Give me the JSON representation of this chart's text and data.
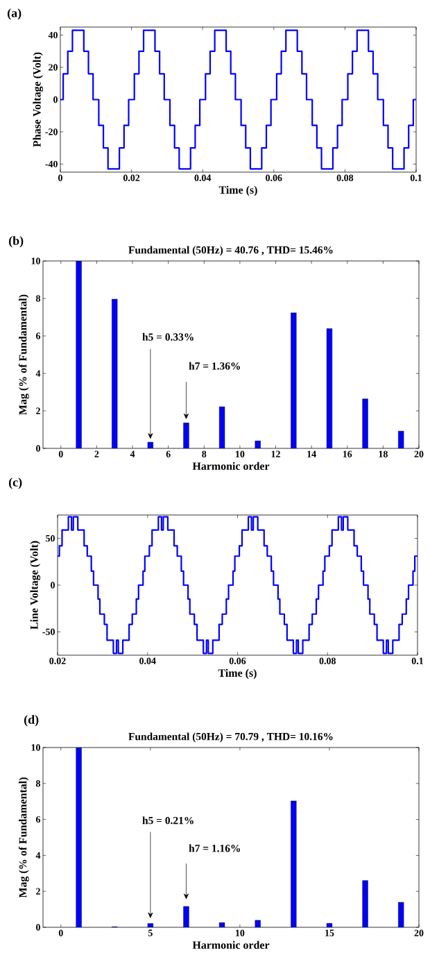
{
  "chart_data": [
    {
      "type": "step",
      "xlabel": "Time (s)",
      "ylabel": "Phase Voltage (Volt)",
      "color": "#0000ff",
      "annotations": [
        "(a)"
      ],
      "x": [
        0,
        0.0008,
        0.0021,
        0.0034,
        0.0066,
        0.0079,
        0.0092,
        0.0108,
        0.0121,
        0.0134,
        0.0166,
        0.0179,
        0.0192,
        0.0208,
        0.0221,
        0.0234,
        0.0266,
        0.0279,
        0.0292,
        0.0308,
        0.0321,
        0.0334,
        0.0366,
        0.0379,
        0.0392,
        0.0408,
        0.0421,
        0.0434,
        0.0466,
        0.0479,
        0.0492,
        0.0508,
        0.0521,
        0.0534,
        0.0566,
        0.0579,
        0.0592,
        0.0608,
        0.0621,
        0.0634,
        0.0666,
        0.0679,
        0.0692,
        0.0708,
        0.0721,
        0.0734,
        0.0766,
        0.0779,
        0.0792,
        0.0808,
        0.0821,
        0.0834,
        0.0866,
        0.0879,
        0.0892,
        0.0908,
        0.0921,
        0.0934,
        0.0966,
        0.0979,
        0.0992,
        0.1
      ],
      "values": [
        0,
        16,
        30,
        43,
        30,
        16,
        0,
        -16,
        -30,
        -43,
        -30,
        -16,
        0,
        16,
        30,
        43,
        30,
        16,
        0,
        -16,
        -30,
        -43,
        -30,
        -16,
        0,
        16,
        30,
        43,
        30,
        16,
        0,
        -16,
        -30,
        -43,
        -30,
        -16,
        0,
        16,
        30,
        43,
        30,
        16,
        0,
        -16,
        -30,
        -43,
        -30,
        -16,
        0,
        16,
        30,
        43,
        30,
        16,
        0,
        -16,
        -30,
        -43,
        -30,
        -16,
        0,
        0
      ],
      "xlim": [
        0,
        0.1
      ],
      "xticks": [
        0,
        0.02,
        0.04,
        0.06,
        0.08,
        0.1
      ],
      "ylim": [
        -45,
        45
      ],
      "yticks": [
        -40,
        -20,
        0,
        20,
        40
      ]
    },
    {
      "type": "bar",
      "title": "Fundamental (50Hz) = 40.76 , THD= 15.46%",
      "xlabel": "Harmonic order",
      "ylabel": "Mag (% of Fundamental)",
      "color": "#0000ff",
      "annotations": [
        "(b)",
        "h5 = 0.33%",
        "h7 = 1.36%"
      ],
      "x": [
        1,
        3,
        5,
        7,
        9,
        11,
        13,
        15,
        17,
        19
      ],
      "values": [
        10,
        7.96,
        0.33,
        1.36,
        2.22,
        0.4,
        7.23,
        6.39,
        2.64,
        0.92
      ],
      "xlim": [
        -1,
        20
      ],
      "xticks": [
        0,
        2,
        4,
        6,
        8,
        10,
        12,
        14,
        16,
        18,
        20
      ],
      "ylim": [
        0,
        10
      ],
      "yticks": [
        0,
        2,
        4,
        6,
        8,
        10
      ]
    },
    {
      "type": "step",
      "xlabel": "Time (s)",
      "ylabel": "Line Voltage (Volt)",
      "color": "#0000ff",
      "annotations": [
        "(c)"
      ],
      "x": [
        0.02,
        0.0204,
        0.021,
        0.0224,
        0.0231,
        0.0235,
        0.0245,
        0.0259,
        0.0266,
        0.0275,
        0.028,
        0.029,
        0.0294,
        0.0304,
        0.031,
        0.0324,
        0.0331,
        0.0335,
        0.0345,
        0.0359,
        0.0366,
        0.0375,
        0.038,
        0.039,
        0.0394,
        0.0404,
        0.041,
        0.0424,
        0.0431,
        0.0435,
        0.0445,
        0.0459,
        0.0466,
        0.0475,
        0.048,
        0.049,
        0.0494,
        0.0504,
        0.051,
        0.0524,
        0.0531,
        0.0535,
        0.0545,
        0.0559,
        0.0566,
        0.0575,
        0.058,
        0.059,
        0.0594,
        0.0604,
        0.061,
        0.0624,
        0.0631,
        0.0635,
        0.0645,
        0.0659,
        0.0666,
        0.0675,
        0.068,
        0.069,
        0.0694,
        0.0704,
        0.071,
        0.0724,
        0.0731,
        0.0735,
        0.0745,
        0.0759,
        0.0766,
        0.0775,
        0.078,
        0.079,
        0.0794,
        0.0804,
        0.081,
        0.0824,
        0.0831,
        0.0835,
        0.0845,
        0.0859,
        0.0866,
        0.0875,
        0.088,
        0.089,
        0.0894,
        0.0904,
        0.091,
        0.0924,
        0.0931,
        0.0935,
        0.0945,
        0.0959,
        0.0966,
        0.0975,
        0.098,
        0.099,
        0.0994,
        0.1
      ],
      "values": [
        31,
        42,
        59,
        73,
        59,
        73,
        59,
        42,
        31,
        15,
        0,
        -15,
        -31,
        -42,
        -59,
        -73,
        -59,
        -73,
        -59,
        -42,
        -31,
        -15,
        0,
        15,
        31,
        42,
        59,
        73,
        59,
        73,
        59,
        42,
        31,
        15,
        0,
        -15,
        -31,
        -42,
        -59,
        -73,
        -59,
        -73,
        -59,
        -42,
        -31,
        -15,
        0,
        15,
        31,
        42,
        59,
        73,
        59,
        73,
        59,
        42,
        31,
        15,
        0,
        -15,
        -31,
        -42,
        -59,
        -73,
        -59,
        -73,
        -59,
        -42,
        -31,
        -15,
        0,
        15,
        31,
        42,
        59,
        73,
        59,
        73,
        59,
        42,
        31,
        15,
        0,
        -15,
        -31,
        -42,
        -59,
        -73,
        -59,
        -73,
        -59,
        -42,
        -31,
        -15,
        0,
        15,
        31,
        31
      ],
      "xlim": [
        0.02,
        0.1
      ],
      "xticks": [
        0.02,
        0.04,
        0.06,
        0.08,
        0.1
      ],
      "ylim": [
        -75,
        75
      ],
      "yticks": [
        -50,
        0,
        50
      ]
    },
    {
      "type": "bar",
      "title": "Fundamental (50Hz) = 70.79 , THD= 10.16%",
      "xlabel": "Harmonic order",
      "ylabel": "Mag (% of Fundamental)",
      "color": "#0000ff",
      "annotations": [
        "(d)",
        "h5 = 0.21%",
        "h7 = 1.16%"
      ],
      "x": [
        1,
        3,
        5,
        7,
        9,
        11,
        13,
        15,
        17,
        19
      ],
      "values": [
        10,
        0.03,
        0.21,
        1.16,
        0.26,
        0.39,
        7.03,
        0.22,
        2.6,
        1.39
      ],
      "xlim": [
        -1,
        20
      ],
      "xticks": [
        0,
        5,
        10,
        15,
        20
      ],
      "ylim": [
        0,
        10
      ],
      "yticks": [
        0,
        2,
        4,
        6,
        8,
        10
      ]
    }
  ]
}
